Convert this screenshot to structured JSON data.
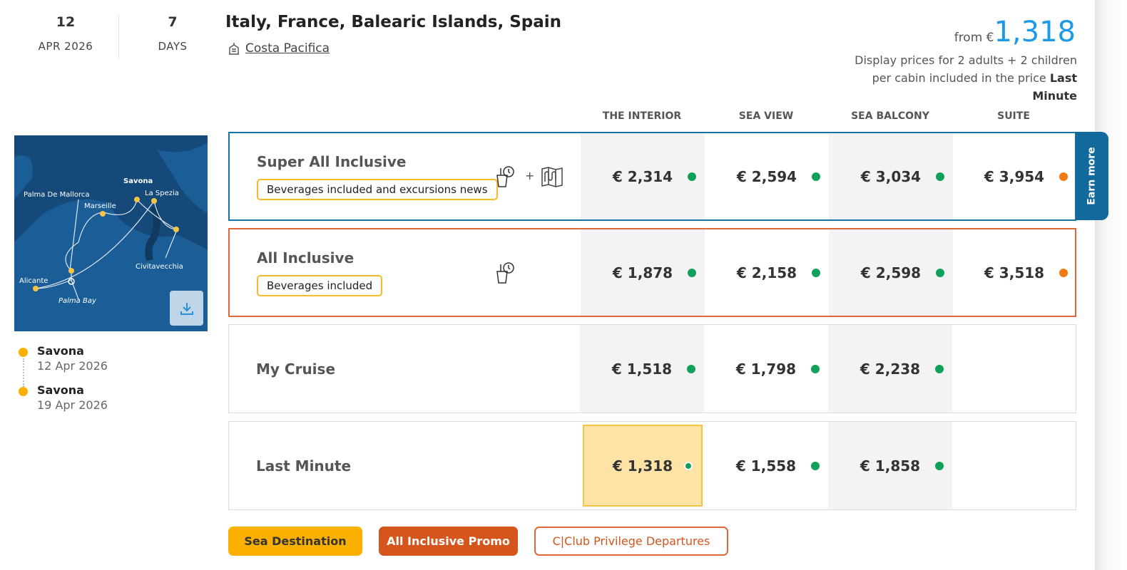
{
  "header": {
    "day": "12",
    "month_year": "APR 2026",
    "duration": "7",
    "duration_unit": "DAYS",
    "title": "Italy, France, Balearic Islands, Spain",
    "ship": "Costa Pacifica",
    "from_label": "from €",
    "from_price": "1,318",
    "price_note": "Display prices for 2 adults + 2 children per cabin included in the price",
    "price_note_bold": "Last Minute"
  },
  "columns": [
    "THE INTERIOR",
    "SEA VIEW",
    "SEA BALCONY",
    "SUITE"
  ],
  "map": {
    "ports": [
      "Savona",
      "La Spezia",
      "Palma De Mallorca",
      "Marseille",
      "Civitavecchia",
      "Alicante",
      "Palma Bay"
    ],
    "download_icon": "download-icon"
  },
  "itinerary": [
    {
      "port": "Savona",
      "date": "12 Apr 2026"
    },
    {
      "port": "Savona",
      "date": "19 Apr 2026"
    }
  ],
  "rows": [
    {
      "name": "Super All Inclusive",
      "tag": "Beverages included and excursions news",
      "icons": [
        "drinks-icon",
        "map-icon"
      ],
      "prices": [
        {
          "v": "€ 2,314",
          "s": "#11a05a"
        },
        {
          "v": "€ 2,594",
          "s": "#11a05a"
        },
        {
          "v": "€ 3,034",
          "s": "#11a05a"
        },
        {
          "v": "€ 3,954",
          "s": "#f07a12"
        }
      ]
    },
    {
      "name": "All Inclusive",
      "tag": "Beverages included",
      "icons": [
        "drinks-icon"
      ],
      "prices": [
        {
          "v": "€ 1,878",
          "s": "#11a05a"
        },
        {
          "v": "€ 2,158",
          "s": "#11a05a"
        },
        {
          "v": "€ 2,598",
          "s": "#11a05a"
        },
        {
          "v": "€ 3,518",
          "s": "#f07a12"
        }
      ]
    },
    {
      "name": "My Cruise",
      "prices": [
        {
          "v": "€ 1,518",
          "s": "#11a05a"
        },
        {
          "v": "€ 1,798",
          "s": "#11a05a"
        },
        {
          "v": "€ 2,238",
          "s": "#11a05a"
        }
      ]
    },
    {
      "name": "Last Minute",
      "prices": [
        {
          "v": "€ 1,318",
          "s": "#11a05a"
        },
        {
          "v": "€ 1,558",
          "s": "#11a05a"
        },
        {
          "v": "€ 1,858",
          "s": "#11a05a"
        }
      ]
    }
  ],
  "earn_more": "Earn more",
  "badges": [
    "Sea Destination",
    "All Inclusive Promo",
    "C|Club Privilege Departures"
  ],
  "colors": {
    "accent": "#1b9ae8",
    "sai_border": "#1874a6",
    "ai_border": "#e0673a",
    "available": "#11a05a",
    "limited": "#f07a12",
    "yellow": "#fbb000",
    "orange": "#d4561c"
  }
}
